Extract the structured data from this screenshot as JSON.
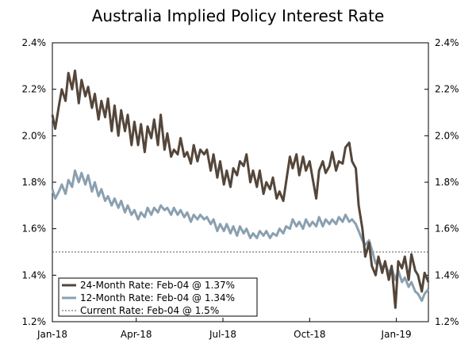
{
  "chart_data": {
    "type": "line",
    "title": "Australia Implied Policy Interest Rate",
    "xlabel": "",
    "ylabel": "",
    "x_tick_labels": [
      "Jan-18",
      "Apr-18",
      "Jul-18",
      "Oct-18",
      "Jan-19"
    ],
    "x_tick_positions": [
      0,
      89,
      181,
      273,
      365
    ],
    "x_range": [
      0,
      399
    ],
    "y_ticks": [
      1.2,
      1.4,
      1.6,
      1.8,
      2.0,
      2.2,
      2.4
    ],
    "y_tick_labels": [
      "1.2%",
      "1.4%",
      "1.6%",
      "1.8%",
      "2.0%",
      "2.2%",
      "2.4%"
    ],
    "ylim": [
      1.2,
      2.4
    ],
    "grid": false,
    "legend_position": "bottom-left",
    "series": [
      {
        "name": "24-Month Rate: Feb-04 @ 1.37%",
        "color": "#54463a",
        "style": "solid",
        "x": [
          0,
          3,
          7,
          10,
          14,
          17,
          21,
          24,
          28,
          31,
          35,
          38,
          42,
          45,
          49,
          52,
          56,
          59,
          63,
          66,
          70,
          73,
          77,
          80,
          84,
          87,
          91,
          94,
          98,
          101,
          105,
          108,
          112,
          115,
          119,
          122,
          126,
          129,
          133,
          136,
          140,
          143,
          147,
          150,
          154,
          157,
          161,
          164,
          168,
          171,
          175,
          178,
          182,
          185,
          189,
          192,
          196,
          199,
          203,
          206,
          210,
          213,
          217,
          220,
          224,
          227,
          231,
          234,
          238,
          241,
          245,
          248,
          252,
          255,
          259,
          262,
          266,
          269,
          273,
          276,
          280,
          283,
          287,
          290,
          294,
          297,
          301,
          304,
          308,
          311,
          315,
          318,
          322,
          325,
          329,
          332,
          336,
          339,
          343,
          346,
          350,
          353,
          357,
          360,
          364,
          367,
          371,
          374,
          378,
          381,
          385,
          388,
          392,
          395,
          399
        ],
        "values": [
          2.09,
          2.03,
          2.13,
          2.2,
          2.15,
          2.27,
          2.2,
          2.28,
          2.14,
          2.24,
          2.17,
          2.21,
          2.12,
          2.18,
          2.07,
          2.15,
          2.08,
          2.16,
          2.02,
          2.13,
          2.0,
          2.11,
          2.02,
          2.09,
          1.96,
          2.06,
          1.96,
          2.05,
          1.93,
          2.04,
          1.99,
          2.07,
          1.96,
          2.09,
          1.94,
          2.01,
          1.91,
          1.94,
          1.92,
          1.99,
          1.91,
          1.93,
          1.88,
          1.96,
          1.89,
          1.94,
          1.92,
          1.94,
          1.85,
          1.92,
          1.82,
          1.89,
          1.79,
          1.85,
          1.78,
          1.86,
          1.83,
          1.89,
          1.87,
          1.92,
          1.8,
          1.85,
          1.78,
          1.85,
          1.75,
          1.8,
          1.77,
          1.82,
          1.73,
          1.76,
          1.72,
          1.8,
          1.91,
          1.86,
          1.92,
          1.83,
          1.91,
          1.85,
          1.89,
          1.82,
          1.73,
          1.85,
          1.89,
          1.84,
          1.87,
          1.93,
          1.85,
          1.89,
          1.88,
          1.95,
          1.97,
          1.89,
          1.86,
          1.7,
          1.6,
          1.48,
          1.54,
          1.44,
          1.4,
          1.48,
          1.41,
          1.46,
          1.38,
          1.44,
          1.26,
          1.46,
          1.43,
          1.48,
          1.38,
          1.49,
          1.42,
          1.4,
          1.33,
          1.41,
          1.37
        ]
      },
      {
        "name": "12-Month Rate: Feb-04 @ 1.34%",
        "color": "#8aa0b0",
        "style": "solid",
        "x": [
          0,
          3,
          7,
          10,
          14,
          17,
          21,
          24,
          28,
          31,
          35,
          38,
          42,
          45,
          49,
          52,
          56,
          59,
          63,
          66,
          70,
          73,
          77,
          80,
          84,
          87,
          91,
          94,
          98,
          101,
          105,
          108,
          112,
          115,
          119,
          122,
          126,
          129,
          133,
          136,
          140,
          143,
          147,
          150,
          154,
          157,
          161,
          164,
          168,
          171,
          175,
          178,
          182,
          185,
          189,
          192,
          196,
          199,
          203,
          206,
          210,
          213,
          217,
          220,
          224,
          227,
          231,
          234,
          238,
          241,
          245,
          248,
          252,
          255,
          259,
          262,
          266,
          269,
          273,
          276,
          280,
          283,
          287,
          290,
          294,
          297,
          301,
          304,
          308,
          311,
          315,
          318,
          322,
          325,
          329,
          332,
          336,
          339,
          343,
          346,
          350,
          353,
          357,
          360,
          364,
          367,
          371,
          374,
          378,
          381,
          385,
          388,
          392,
          395,
          399
        ],
        "values": [
          1.77,
          1.73,
          1.76,
          1.79,
          1.75,
          1.81,
          1.78,
          1.85,
          1.8,
          1.84,
          1.79,
          1.83,
          1.76,
          1.8,
          1.74,
          1.77,
          1.72,
          1.74,
          1.7,
          1.73,
          1.69,
          1.72,
          1.67,
          1.7,
          1.66,
          1.68,
          1.64,
          1.67,
          1.65,
          1.69,
          1.66,
          1.69,
          1.67,
          1.7,
          1.68,
          1.69,
          1.66,
          1.69,
          1.66,
          1.68,
          1.65,
          1.67,
          1.63,
          1.66,
          1.64,
          1.66,
          1.64,
          1.65,
          1.62,
          1.64,
          1.59,
          1.62,
          1.59,
          1.62,
          1.58,
          1.61,
          1.57,
          1.61,
          1.58,
          1.6,
          1.56,
          1.58,
          1.56,
          1.59,
          1.57,
          1.59,
          1.56,
          1.58,
          1.57,
          1.6,
          1.58,
          1.61,
          1.6,
          1.64,
          1.61,
          1.63,
          1.6,
          1.64,
          1.61,
          1.63,
          1.61,
          1.65,
          1.61,
          1.64,
          1.62,
          1.64,
          1.62,
          1.65,
          1.63,
          1.66,
          1.63,
          1.64,
          1.62,
          1.59,
          1.55,
          1.53,
          1.55,
          1.51,
          1.45,
          1.47,
          1.43,
          1.45,
          1.41,
          1.43,
          1.38,
          1.42,
          1.37,
          1.39,
          1.35,
          1.37,
          1.33,
          1.32,
          1.29,
          1.32,
          1.34
        ]
      },
      {
        "name": "Current Rate: Feb-04 @ 1.5%",
        "color": "#555555",
        "style": "dotted",
        "x": [
          0,
          399
        ],
        "values": [
          1.5,
          1.5
        ]
      }
    ]
  }
}
